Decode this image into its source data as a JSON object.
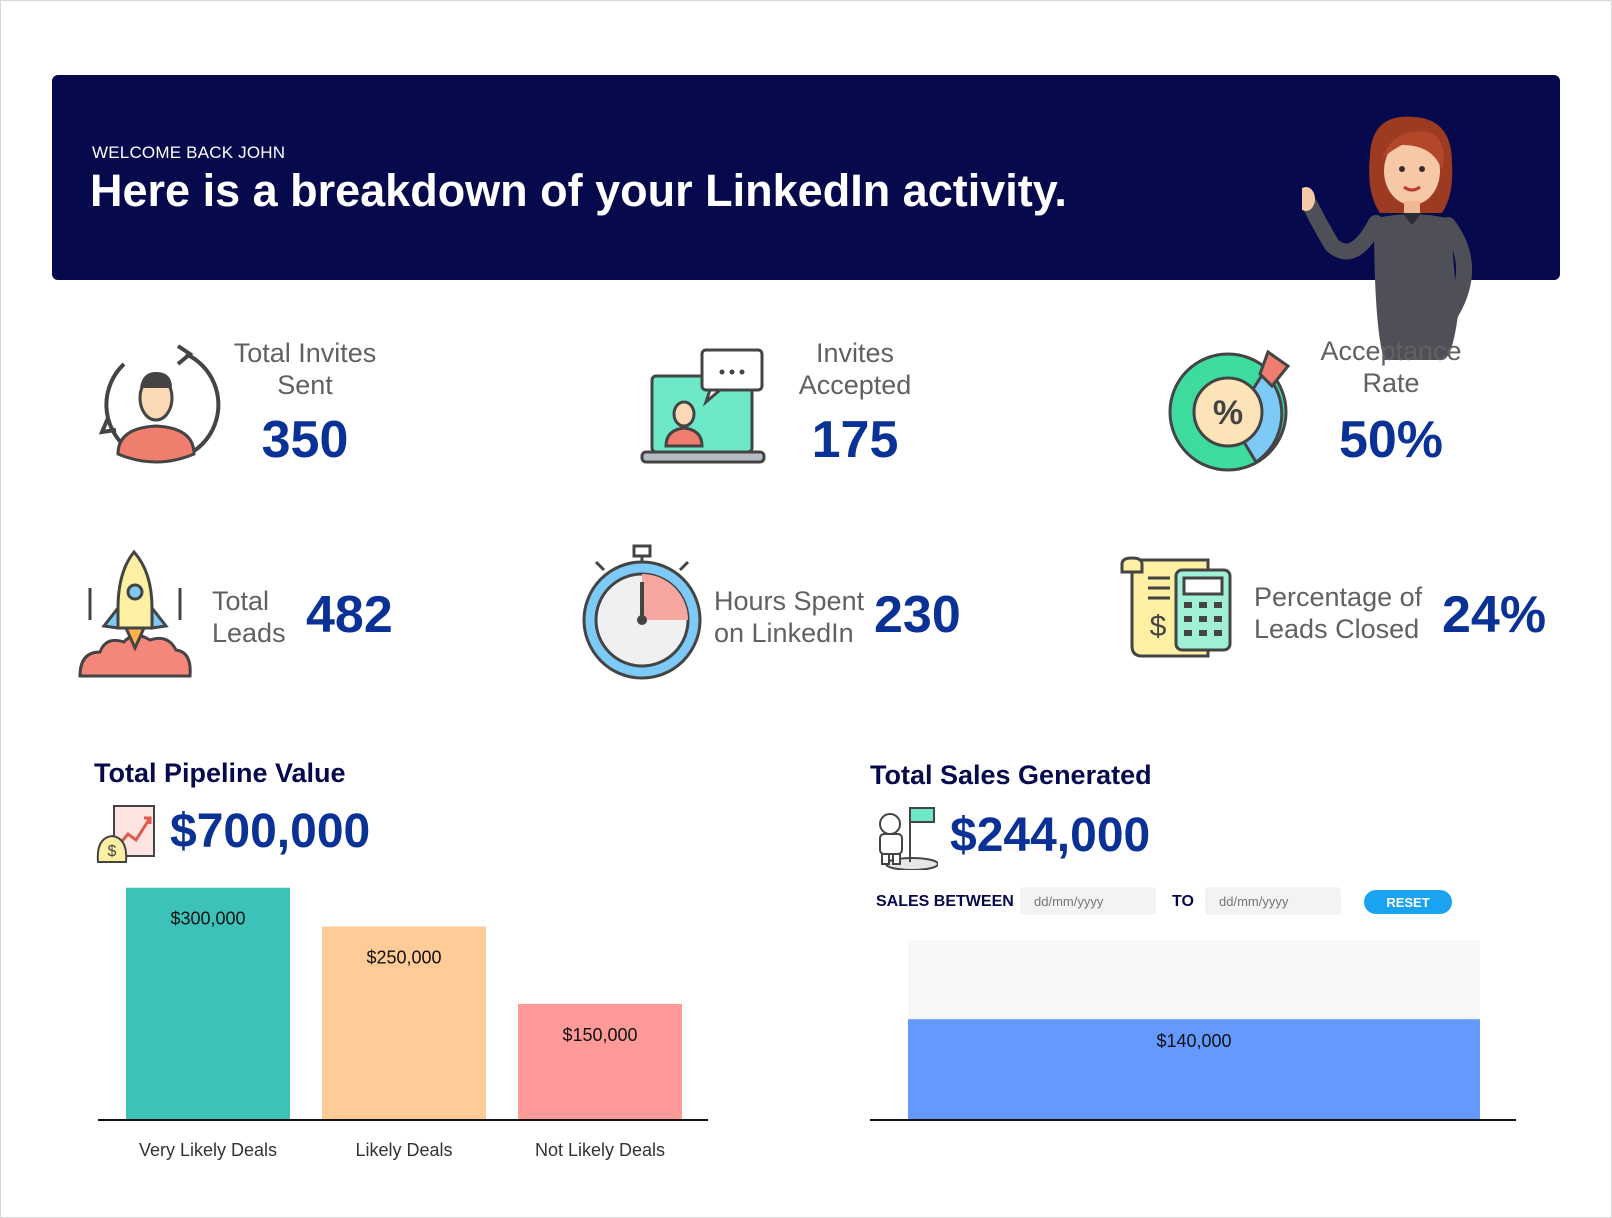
{
  "banner": {
    "welcome": "WELCOME BACK JOHN",
    "headline": "Here is a breakdown of your LinkedIn activity."
  },
  "stats": [
    {
      "label_line1": "Total Invites",
      "label_line2": "Sent",
      "value": "350",
      "icon": "user-refresh-icon"
    },
    {
      "label_line1": "Invites",
      "label_line2": "Accepted",
      "value": "175",
      "icon": "laptop-chat-icon"
    },
    {
      "label_line1": "Acceptance",
      "label_line2": "Rate",
      "value": "50%",
      "icon": "percent-donut-icon"
    },
    {
      "label_line1": "Total",
      "label_line2": "Leads",
      "value": "482",
      "icon": "rocket-icon"
    },
    {
      "label_line1": "Hours Spent",
      "label_line2": "on LinkedIn",
      "value": "230",
      "icon": "stopwatch-icon"
    },
    {
      "label_line1": "Percentage of",
      "label_line2": "Leads Closed",
      "value": "24%",
      "icon": "invoice-calculator-icon"
    }
  ],
  "pipeline": {
    "title": "Total Pipeline Value",
    "amount": "$700,000"
  },
  "sales": {
    "title": "Total Sales Generated",
    "amount": "$244,000",
    "between_label": "SALES BETWEEN",
    "from_placeholder": "dd/mm/yyyy",
    "to_label": "TO",
    "to_placeholder": "dd/mm/yyyy",
    "reset_label": "RESET"
  },
  "colors": {
    "navy": "#07094d",
    "value_blue": "#0a3296",
    "teal": "#3cc2b8",
    "peach": "#ffcb96",
    "salmon": "#ff9a99",
    "sales_blue": "#6499ff",
    "reset": "#1aa3f0"
  },
  "chart_data": [
    {
      "type": "bar",
      "categories": [
        "Very Likely Deals",
        "Likely Deals",
        "Not Likely Deals"
      ],
      "values": [
        300000,
        250000,
        150000
      ],
      "data_labels": [
        "$300,000",
        "$250,000",
        "$150,000"
      ],
      "colors": [
        "#3cc2b8",
        "#ffcb96",
        "#ff9a99"
      ],
      "ylim": [
        0,
        310000
      ],
      "grid": false
    },
    {
      "type": "bar",
      "categories": [
        ""
      ],
      "values": [
        140000
      ],
      "data_labels": [
        "$140,000"
      ],
      "colors": [
        "#6499ff"
      ],
      "ylim": [
        0,
        250000
      ],
      "grid": false
    }
  ]
}
